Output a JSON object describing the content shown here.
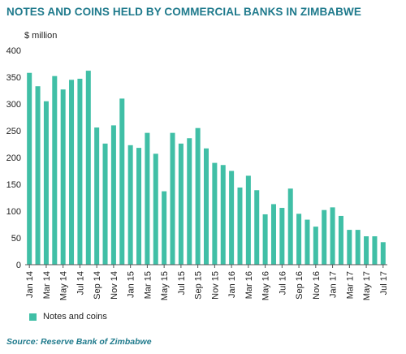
{
  "colors": {
    "title": "#1f7a8c",
    "bar": "#40bfa6",
    "axis": "#555555",
    "text": "#222222"
  },
  "title": "NOTES AND COINS HELD BY COMMERCIAL BANKS IN ZIMBABWE",
  "unit_label": "$ million",
  "source": "Source: Reserve Bank of Zimbabwe",
  "chart_data": {
    "type": "bar",
    "title": "NOTES AND COINS HELD BY COMMERCIAL BANKS IN ZIMBABWE",
    "ylabel": "$ million",
    "xlabel": "",
    "ylim": [
      0,
      400
    ],
    "yticks": [
      0,
      50,
      100,
      150,
      200,
      250,
      300,
      350,
      400
    ],
    "grid": false,
    "legend": "bottom-left",
    "categories": [
      "Jan 14",
      "Feb 14",
      "Mar 14",
      "Apr 14",
      "May 14",
      "Jun 14",
      "Jul 14",
      "Aug 14",
      "Sep 14",
      "Oct 14",
      "Nov 14",
      "Dec 14",
      "Jan 15",
      "Feb 15",
      "Mar 15",
      "Apr 15",
      "May 15",
      "Jun 15",
      "Jul 15",
      "Aug 15",
      "Sep 15",
      "Oct 15",
      "Nov 15",
      "Dec 15",
      "Jan 16",
      "Feb 16",
      "Mar 16",
      "Apr 16",
      "May 16",
      "Jun 16",
      "Jul 16",
      "Aug 16",
      "Sep 16",
      "Oct 16",
      "Nov 16",
      "Dec 16",
      "Jan 17",
      "Feb 17",
      "Mar 17",
      "Apr 17",
      "May 17",
      "Jun 17",
      "Jul 17"
    ],
    "tick_labels": [
      "Jan 14",
      "Mar 14",
      "May 14",
      "Jul 14",
      "Sep 14",
      "Nov 14",
      "Jan 15",
      "Mar 15",
      "May 15",
      "Jul 15",
      "Sep 15",
      "Nov 15",
      "Jan 16",
      "Mar 16",
      "May 16",
      "Jul 16",
      "Sep 16",
      "Nov 16",
      "Jan 17",
      "Mar 17",
      "May 17",
      "Jul 17"
    ],
    "series": [
      {
        "name": "Notes and coins",
        "values": [
          358,
          333,
          305,
          352,
          327,
          345,
          347,
          362,
          256,
          226,
          260,
          310,
          223,
          218,
          246,
          207,
          137,
          246,
          226,
          236,
          255,
          217,
          190,
          186,
          175,
          144,
          166,
          139,
          94,
          113,
          106,
          142,
          95,
          84,
          71,
          102,
          107,
          91,
          65,
          65,
          53,
          53,
          42
        ]
      }
    ]
  }
}
